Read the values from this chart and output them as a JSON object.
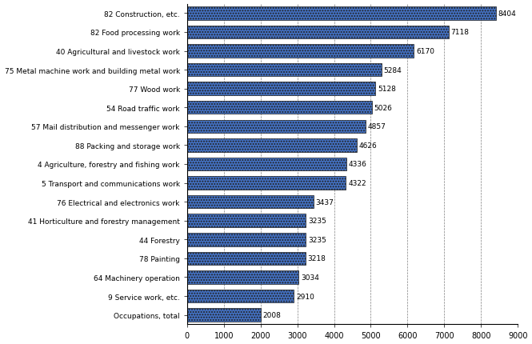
{
  "categories": [
    "Occupations, total",
    "9 Service work, etc.",
    "64 Machinery operation",
    "78 Painting",
    "44 Forestry",
    "41 Horticulture and forestry management",
    "76 Electrical and electronics work",
    "5 Transport and communications work",
    "4 Agriculture, forestry and fishing work",
    "88 Packing and storage work",
    "57 Mail distribution and messenger work",
    "54 Road traffic work",
    "77 Wood work",
    "75 Metal machine work and building metal work",
    "40 Agricultural and livestock work",
    "82 Food processing work",
    "82 Construction, etc."
  ],
  "values": [
    2008,
    2910,
    3034,
    3218,
    3235,
    3235,
    3437,
    4322,
    4336,
    4626,
    4857,
    5026,
    5128,
    5284,
    6170,
    7118,
    8404
  ],
  "bar_color": "#4472C4",
  "bar_edge_color": "#1F1F1F",
  "background_color": "#FFFFFF",
  "xlim": [
    0,
    9000
  ],
  "xticks": [
    0,
    1000,
    2000,
    3000,
    4000,
    5000,
    6000,
    7000,
    8000,
    9000
  ],
  "grid_color": "#808080",
  "label_fontsize": 6.5,
  "value_fontsize": 6.5,
  "tick_fontsize": 7,
  "bar_height": 0.7,
  "hatch": "....."
}
